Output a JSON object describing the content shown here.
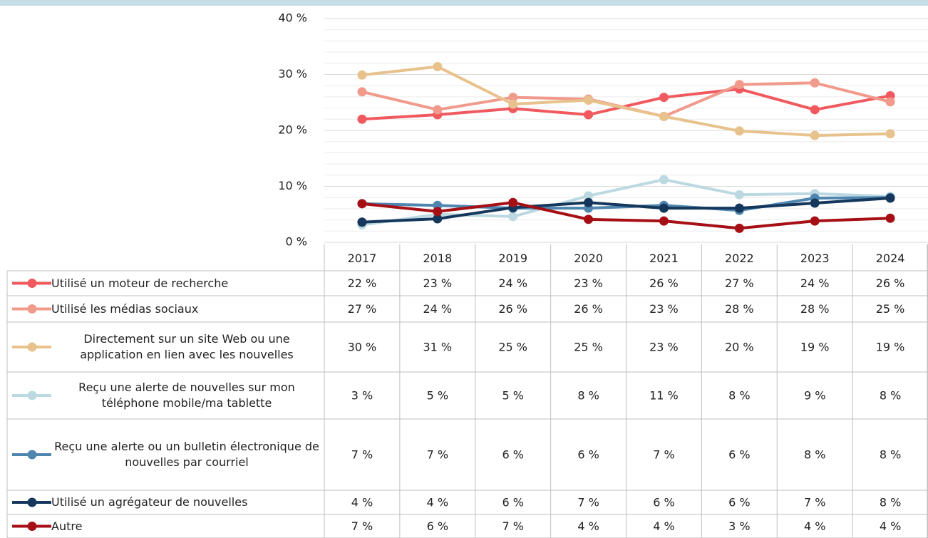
{
  "chart_data": {
    "type": "line",
    "categories": [
      "2017",
      "2018",
      "2019",
      "2020",
      "2021",
      "2022",
      "2023",
      "2024"
    ],
    "ylim": [
      0,
      40
    ],
    "yticks": [
      {
        "value": 0,
        "label": "0 %"
      },
      {
        "value": 10,
        "label": "10 %"
      },
      {
        "value": 20,
        "label": "20 %"
      },
      {
        "value": 30,
        "label": "30 %"
      },
      {
        "value": 40,
        "label": "40 %"
      }
    ],
    "minor_yticks": [
      2,
      4,
      6,
      8,
      12,
      14,
      16,
      18,
      22,
      24,
      26,
      28,
      32,
      34,
      36,
      38
    ],
    "grid": true,
    "series": [
      {
        "name": "Utilisé un moteur de recherche",
        "color": "#f05a5f",
        "values": [
          22.0,
          22.8,
          23.9,
          22.8,
          25.9,
          27.4,
          23.7,
          26.2
        ],
        "value_labels": [
          "22 %",
          "23 %",
          "24 %",
          "23 %",
          "26 %",
          "27 %",
          "24 %",
          "26 %"
        ]
      },
      {
        "name": "Utilisé les médias sociaux",
        "color": "#f19a8c",
        "values": [
          26.9,
          23.7,
          25.9,
          25.6,
          22.5,
          28.2,
          28.5,
          25.1
        ],
        "value_labels": [
          "27 %",
          "24 %",
          "26 %",
          "26 %",
          "23 %",
          "28 %",
          "28 %",
          "25 %"
        ]
      },
      {
        "name": "Directement sur un site Web ou une application en lien avec les nouvelles",
        "color": "#e8c28c",
        "values": [
          29.9,
          31.4,
          24.7,
          25.4,
          22.5,
          19.9,
          19.1,
          19.4
        ],
        "value_labels": [
          "30 %",
          "31 %",
          "25 %",
          "25 %",
          "23 %",
          "20 %",
          "19 %",
          "19 %"
        ]
      },
      {
        "name": "Reçu une alerte de nouvelles sur mon téléphone mobile/ma tablette",
        "color": "#bcd9e1",
        "values": [
          3.1,
          5.0,
          4.6,
          8.3,
          11.2,
          8.5,
          8.7,
          8.2
        ],
        "value_labels": [
          "3 %",
          "5 %",
          "5 %",
          "8 %",
          "11 %",
          "8 %",
          "9 %",
          "8 %"
        ]
      },
      {
        "name": "Reçu une alerte ou un bulletin électronique de nouvelles par courriel",
        "color": "#4f86b0",
        "values": [
          6.9,
          6.6,
          6.1,
          6.1,
          6.6,
          5.7,
          7.9,
          8.0
        ],
        "value_labels": [
          "7 %",
          "7 %",
          "6 %",
          "6 %",
          "7 %",
          "6 %",
          "8 %",
          "8 %"
        ]
      },
      {
        "name": "Utilisé un agrégateur de nouvelles",
        "color": "#15375c",
        "values": [
          3.6,
          4.2,
          6.2,
          7.1,
          6.1,
          6.1,
          7.0,
          7.9
        ],
        "value_labels": [
          "4 %",
          "4 %",
          "6 %",
          "7 %",
          "6 %",
          "6 %",
          "7 %",
          "8 %"
        ]
      },
      {
        "name": "Autre",
        "color": "#a50f15",
        "values": [
          6.9,
          5.5,
          7.1,
          4.1,
          3.8,
          2.5,
          3.8,
          4.3
        ],
        "value_labels": [
          "7 %",
          "6 %",
          "7 %",
          "4 %",
          "4 %",
          "3 %",
          "4 %",
          "4 %"
        ]
      }
    ]
  }
}
